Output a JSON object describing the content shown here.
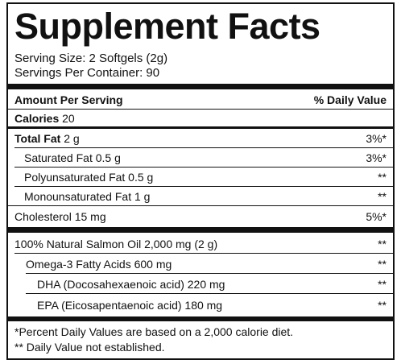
{
  "title": "Supplement Facts",
  "serving": {
    "size": "Serving Size: 2 Softgels (2g)",
    "per_container": "Servings Per Container: 90"
  },
  "header": {
    "amount": "Amount Per Serving",
    "dv": "% Daily Value"
  },
  "rows": [
    {
      "name": "Calories",
      "amount": "20",
      "dv": ""
    },
    {
      "name": "Total Fat",
      "amount": "2 g",
      "dv": "3%*"
    },
    {
      "name": "Saturated Fat 0.5 g",
      "dv": "3%*"
    },
    {
      "name": "Polyunsaturated Fat 0.5 g",
      "dv": "**"
    },
    {
      "name": "Monounsaturated Fat 1 g",
      "dv": "**"
    },
    {
      "name": "Cholesterol 15 mg",
      "dv": "5%*"
    },
    {
      "name": "100% Natural Salmon Oil 2,000 mg (2 g)",
      "dv": "**"
    },
    {
      "name": "Omega-3 Fatty Acids 600 mg",
      "dv": "**"
    },
    {
      "name": "DHA (Docosahexaenoic acid) 220 mg",
      "dv": "**"
    },
    {
      "name": "EPA (Eicosapentaenoic acid) 180 mg",
      "dv": "**"
    }
  ],
  "footnotes": [
    "*Percent Daily Values are based on a 2,000 calorie diet.",
    "** Daily Value not established."
  ]
}
